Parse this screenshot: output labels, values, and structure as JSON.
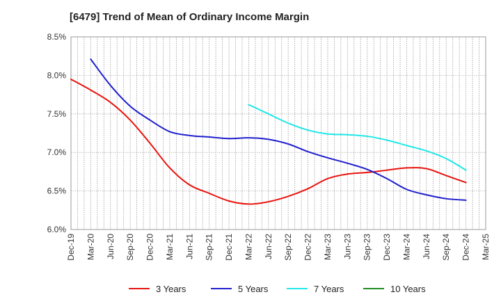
{
  "chart_data": {
    "type": "line",
    "title": "[6479]  Trend of Mean of Ordinary Income Margin",
    "xlabel": "",
    "ylabel": "",
    "x_ticks": [
      "Dec-19",
      "Mar-20",
      "Jun-20",
      "Sep-20",
      "Dec-20",
      "Mar-21",
      "Jun-21",
      "Sep-21",
      "Dec-21",
      "Mar-22",
      "Jun-22",
      "Sep-22",
      "Dec-22",
      "Mar-23",
      "Jun-23",
      "Sep-23",
      "Dec-23",
      "Mar-24",
      "Jun-24",
      "Sep-24",
      "Dec-24",
      "Mar-25"
    ],
    "y_ticks": [
      "6.0%",
      "6.5%",
      "7.0%",
      "7.5%",
      "8.0%",
      "8.5%"
    ],
    "ylim": [
      6.0,
      8.5
    ],
    "grid": "vertical dotted lines per month",
    "legend": "bottom",
    "series": [
      {
        "name": "3 Years",
        "color": "#e8120c",
        "values": [
          7.95,
          7.81,
          7.65,
          7.42,
          7.12,
          6.8,
          6.58,
          6.47,
          6.37,
          6.33,
          6.36,
          6.43,
          6.53,
          6.66,
          6.72,
          6.74,
          6.77,
          6.8,
          6.79,
          6.7,
          6.61,
          null
        ]
      },
      {
        "name": "5 Years",
        "color": "#1e1ecd",
        "values": [
          null,
          8.21,
          7.87,
          7.6,
          7.42,
          7.27,
          7.22,
          7.2,
          7.18,
          7.19,
          7.17,
          7.11,
          7.01,
          6.93,
          6.86,
          6.78,
          6.66,
          6.52,
          6.45,
          6.4,
          6.38,
          null
        ]
      },
      {
        "name": "7 Years",
        "color": "#1ee8e8",
        "values": [
          null,
          null,
          null,
          null,
          null,
          null,
          null,
          null,
          null,
          7.62,
          7.5,
          7.38,
          7.29,
          7.24,
          7.23,
          7.21,
          7.16,
          7.09,
          7.02,
          6.92,
          6.77,
          null
        ]
      },
      {
        "name": "10 Years",
        "color": "#1e8c1e",
        "values": [
          null,
          null,
          null,
          null,
          null,
          null,
          null,
          null,
          null,
          null,
          null,
          null,
          null,
          null,
          null,
          null,
          null,
          null,
          null,
          null,
          null,
          null
        ]
      }
    ]
  }
}
